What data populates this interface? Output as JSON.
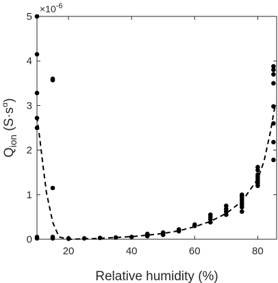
{
  "chart_data": {
    "type": "scatter",
    "xlabel": "Relative humidity (%)",
    "ylabel": {
      "main": "Q",
      "sub": "ion",
      "unit_open": " (S·s",
      "unit_sup": "α",
      "unit_close": ")"
    },
    "y_multiplier": "×10",
    "y_multiplier_exp": "-6",
    "xlim": [
      10,
      86
    ],
    "ylim": [
      0,
      5
    ],
    "xticks": [
      20,
      40,
      60,
      80
    ],
    "yticks": [
      0,
      1,
      2,
      3,
      4,
      5
    ],
    "grid": false,
    "series": [
      {
        "style": "markers",
        "color": "#000000",
        "x": [
          10,
          10,
          10,
          10,
          10,
          10,
          10,
          15,
          15,
          15,
          15,
          15,
          20,
          20,
          25,
          30,
          35,
          40,
          45,
          45,
          45,
          50,
          50,
          55,
          55,
          60,
          60,
          65,
          65,
          65,
          65,
          70,
          70,
          70,
          70,
          75,
          75,
          75,
          75,
          75,
          75,
          75,
          75,
          80,
          80,
          80,
          80,
          80,
          80,
          80,
          80,
          85,
          85,
          85,
          85,
          85,
          85,
          85,
          85
        ],
        "y": [
          5.0,
          4.15,
          3.28,
          2.72,
          2.5,
          0.05,
          0.02,
          3.6,
          3.57,
          1.15,
          0.05,
          0.02,
          0.02,
          0.01,
          0.02,
          0.03,
          0.04,
          0.05,
          0.07,
          0.1,
          0.12,
          0.1,
          0.15,
          0.18,
          0.22,
          0.3,
          0.33,
          0.38,
          0.45,
          0.5,
          0.55,
          0.55,
          0.62,
          0.68,
          0.75,
          0.62,
          0.72,
          0.78,
          0.83,
          0.88,
          0.93,
          0.97,
          1.0,
          1.2,
          1.25,
          1.3,
          1.35,
          1.4,
          1.45,
          1.55,
          1.62,
          1.78,
          2.18,
          2.6,
          2.98,
          3.5,
          3.7,
          3.8,
          3.88
        ]
      },
      {
        "style": "dashed-line",
        "color": "#000000",
        "x": [
          10,
          11,
          12,
          13,
          15,
          17,
          20,
          25,
          30,
          35,
          40,
          45,
          50,
          55,
          60,
          65,
          70,
          75,
          80,
          82,
          84,
          85.5
        ],
        "y": [
          2.75,
          2.2,
          1.6,
          1.05,
          0.38,
          0.05,
          0.0,
          0.01,
          0.02,
          0.04,
          0.06,
          0.09,
          0.13,
          0.19,
          0.28,
          0.4,
          0.58,
          0.85,
          1.35,
          1.75,
          2.4,
          3.0
        ]
      }
    ]
  }
}
